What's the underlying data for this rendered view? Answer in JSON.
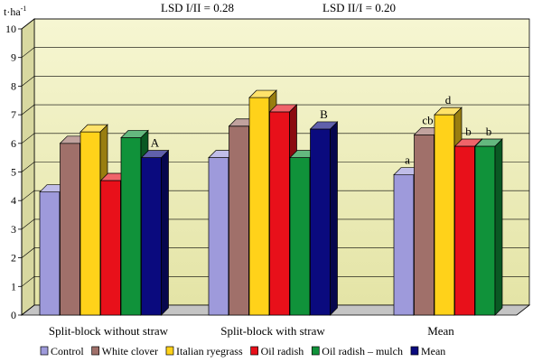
{
  "chart_data": {
    "type": "bar",
    "style": "3d-clustered",
    "ylabel": "t·ha",
    "ylabel_sup": "-1",
    "ylim": [
      0,
      10
    ],
    "yticks": [
      0,
      1,
      2,
      3,
      4,
      5,
      6,
      7,
      8,
      9,
      10
    ],
    "grid": true,
    "legend_position": "bottom",
    "annotations": [
      "LSD I/II = 0.28",
      "LSD II/I = 0.20"
    ],
    "categories": [
      "Split-block without straw",
      "Split-block with straw",
      "Mean"
    ],
    "series": [
      {
        "name": "Control",
        "color": "#9E9ADB",
        "values": [
          4.3,
          5.5,
          4.9
        ]
      },
      {
        "name": "White clover",
        "color": "#A0706A",
        "values": [
          6.0,
          6.6,
          6.3
        ]
      },
      {
        "name": "Italian ryegrass",
        "color": "#FFD21A",
        "values": [
          6.4,
          7.6,
          7.0
        ]
      },
      {
        "name": "Oil radish",
        "color": "#E8101A",
        "values": [
          4.7,
          7.1,
          5.9
        ]
      },
      {
        "name": "Oil radish – mulch",
        "color": "#10923A",
        "values": [
          6.2,
          5.5,
          5.9
        ]
      },
      {
        "name": "Mean",
        "color": "#0A0A7E",
        "values": [
          5.5,
          6.5,
          null
        ]
      }
    ],
    "bar_labels": [
      {
        "category": 0,
        "series": 5,
        "text": "A"
      },
      {
        "category": 1,
        "series": 5,
        "text": "B"
      },
      {
        "category": 2,
        "series": 0,
        "text": "a"
      },
      {
        "category": 2,
        "series": 1,
        "text": "cb"
      },
      {
        "category": 2,
        "series": 2,
        "text": "d"
      },
      {
        "category": 2,
        "series": 3,
        "text": "b"
      },
      {
        "category": 2,
        "series": 4,
        "text": "b"
      }
    ]
  }
}
